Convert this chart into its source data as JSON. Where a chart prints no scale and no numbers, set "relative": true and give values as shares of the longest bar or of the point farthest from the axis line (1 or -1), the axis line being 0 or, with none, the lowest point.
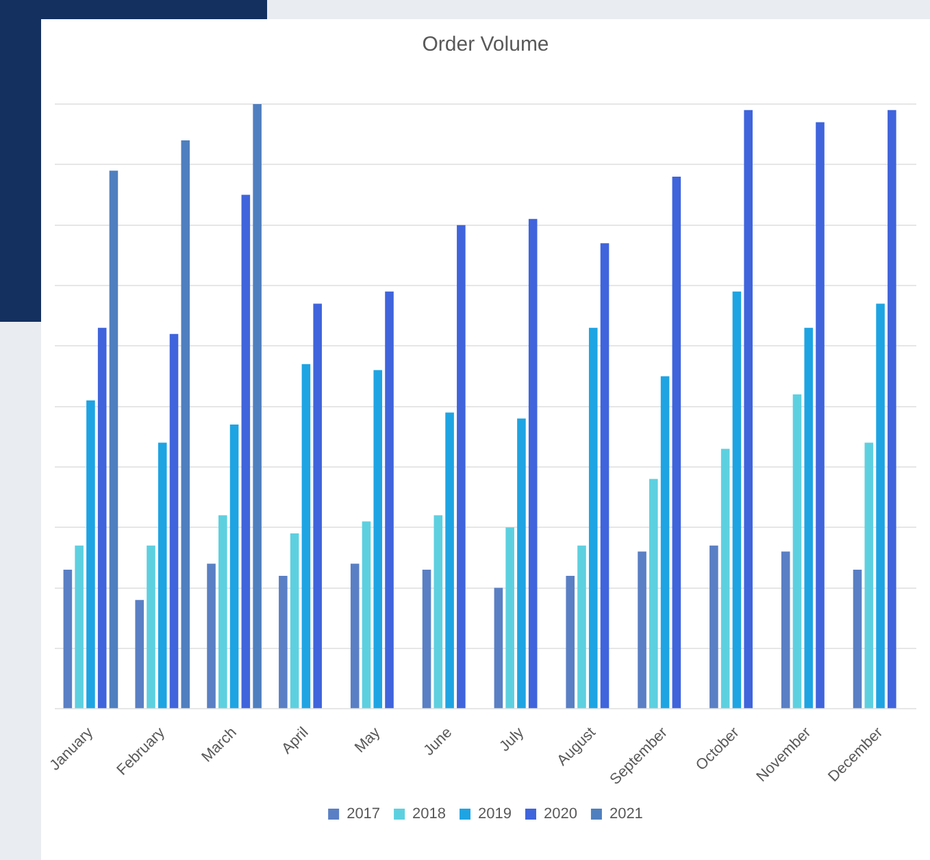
{
  "chart_data": {
    "type": "bar",
    "title": "Order Volume",
    "relative": true,
    "grid": "y",
    "legend": "bottom",
    "categories": [
      "January",
      "February",
      "March",
      "April",
      "May",
      "June",
      "July",
      "August",
      "September",
      "October",
      "November",
      "December"
    ],
    "series": [
      {
        "name": "2017",
        "color": "#5a7fc4",
        "values": [
          0.23,
          0.18,
          0.24,
          0.22,
          0.24,
          0.23,
          0.2,
          0.22,
          0.26,
          0.27,
          0.26,
          0.23
        ]
      },
      {
        "name": "2018",
        "color": "#5dd0e0",
        "values": [
          0.27,
          0.27,
          0.32,
          0.29,
          0.31,
          0.32,
          0.3,
          0.27,
          0.38,
          0.43,
          0.52,
          0.44
        ]
      },
      {
        "name": "2019",
        "color": "#1ea4e3",
        "values": [
          0.51,
          0.44,
          0.47,
          0.57,
          0.56,
          0.49,
          0.48,
          0.63,
          0.55,
          0.69,
          0.63,
          0.67
        ]
      },
      {
        "name": "2020",
        "color": "#3f64dc",
        "values": [
          0.63,
          0.62,
          0.85,
          0.67,
          0.69,
          0.8,
          0.81,
          0.77,
          0.88,
          0.99,
          0.97,
          0.99
        ]
      },
      {
        "name": "2021",
        "color": "#4f7fbf",
        "values": [
          0.89,
          0.94,
          1,
          null,
          null,
          null,
          null,
          null,
          null,
          null,
          null,
          null
        ]
      }
    ]
  }
}
